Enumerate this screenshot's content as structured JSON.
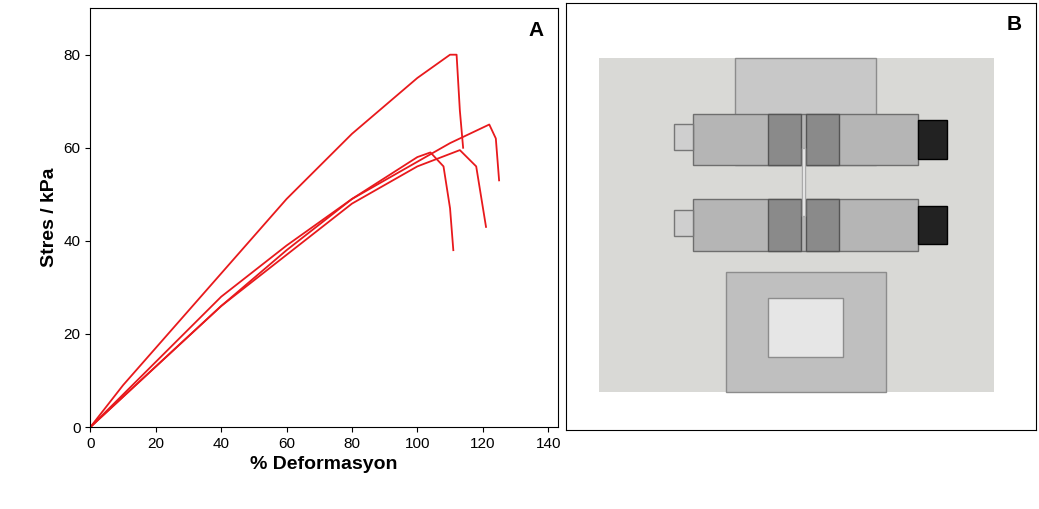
{
  "chart_data": {
    "type": "line",
    "annotations": [
      "A"
    ],
    "x_label": "% Deformasyon",
    "y_label": "Stres / kPa",
    "xlim": [
      0,
      143
    ],
    "xticks": [
      0,
      20,
      40,
      60,
      80,
      100,
      120,
      140
    ],
    "ylim": [
      0,
      90
    ],
    "yticks": [
      0,
      20,
      40,
      60,
      80
    ],
    "grid": false,
    "color": "#e8191c",
    "series": [
      {
        "x": [
          0,
          10,
          20,
          40,
          60,
          80,
          100,
          110,
          112,
          113,
          114
        ],
        "values": [
          0,
          9,
          17,
          33,
          49,
          63,
          75,
          80,
          80,
          68,
          60
        ]
      },
      {
        "x": [
          0,
          20,
          40,
          60,
          80,
          100,
          110,
          122,
          124,
          125
        ],
        "values": [
          0,
          13,
          26,
          38,
          49,
          57,
          61,
          65,
          62,
          53
        ]
      },
      {
        "x": [
          0,
          20,
          40,
          60,
          80,
          100,
          104,
          108,
          110,
          111
        ],
        "values": [
          0,
          14,
          28,
          39,
          49,
          58,
          59,
          56,
          47,
          38
        ]
      },
      {
        "x": [
          0,
          20,
          40,
          60,
          80,
          100,
          113,
          118,
          121
        ],
        "values": [
          0,
          13,
          26,
          37,
          48,
          56,
          59.5,
          56,
          43
        ]
      }
    ]
  },
  "photo": {
    "label": "B"
  }
}
